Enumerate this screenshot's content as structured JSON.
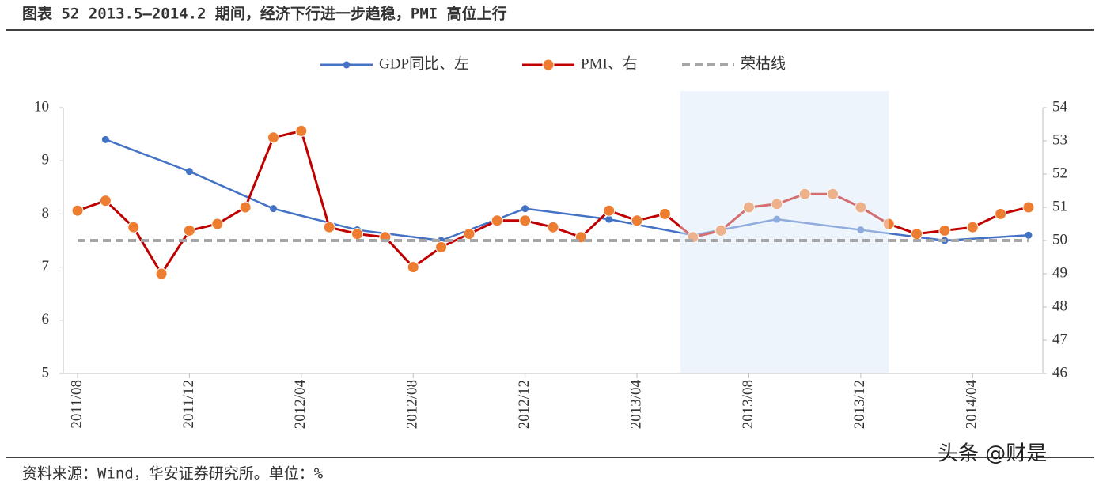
{
  "chart_data": {
    "type": "line",
    "title": "图表 52 2013.5—2014.2 期间，经济下行进一步趋稳，PMI 高位上行",
    "source": "资料来源：Wind，华安证券研究所。单位：%",
    "watermark": "头条 @财是",
    "xticks": [
      "2011/08",
      "2011/12",
      "2012/04",
      "2012/08",
      "2012/12",
      "2013/04",
      "2013/08",
      "2013/12",
      "2014/04"
    ],
    "xlim": [
      "2011/08",
      "2014/06"
    ],
    "ylim": [
      5,
      10
    ],
    "yticks": [
      5,
      6,
      7,
      8,
      9,
      10
    ],
    "y2lim": [
      46,
      54
    ],
    "y2ticks": [
      46,
      47,
      48,
      49,
      50,
      51,
      52,
      53,
      54
    ],
    "highlight": [
      "2013/06",
      "2014/01"
    ],
    "series": [
      {
        "name": "GDP同比、左",
        "color": "#4472c4",
        "axis": "y",
        "x": [
          "2011/09",
          "2011/12",
          "2012/03",
          "2012/06",
          "2012/09",
          "2012/12",
          "2013/03",
          "2013/06",
          "2013/09",
          "2013/12",
          "2014/03",
          "2014/06"
        ],
        "values": [
          9.4,
          8.8,
          8.1,
          7.7,
          7.5,
          8.1,
          7.9,
          7.6,
          7.9,
          7.7,
          7.5,
          7.6
        ]
      },
      {
        "name": "PMI、右",
        "color": "#c00000",
        "marker_color": "#ed7d31",
        "axis": "y2",
        "x": [
          "2011/08",
          "2011/09",
          "2011/10",
          "2011/11",
          "2011/12",
          "2012/01",
          "2012/02",
          "2012/03",
          "2012/04",
          "2012/05",
          "2012/06",
          "2012/07",
          "2012/08",
          "2012/09",
          "2012/10",
          "2012/11",
          "2012/12",
          "2013/01",
          "2013/02",
          "2013/03",
          "2013/04",
          "2013/05",
          "2013/06",
          "2013/07",
          "2013/08",
          "2013/09",
          "2013/10",
          "2013/11",
          "2013/12",
          "2014/01",
          "2014/02",
          "2014/03",
          "2014/04",
          "2014/05",
          "2014/06"
        ],
        "values": [
          50.9,
          51.2,
          50.4,
          49.0,
          50.3,
          50.5,
          51.0,
          53.1,
          53.3,
          50.4,
          50.2,
          50.1,
          49.2,
          49.8,
          50.2,
          50.6,
          50.6,
          50.4,
          50.1,
          50.9,
          50.6,
          50.8,
          50.1,
          50.3,
          51.0,
          51.1,
          51.4,
          51.4,
          51.0,
          50.5,
          50.2,
          50.3,
          50.4,
          50.8,
          51.0
        ]
      }
    ],
    "reference": {
      "name": "荣枯线",
      "value": 50,
      "axis": "y2",
      "color": "#a6a6a6"
    }
  }
}
